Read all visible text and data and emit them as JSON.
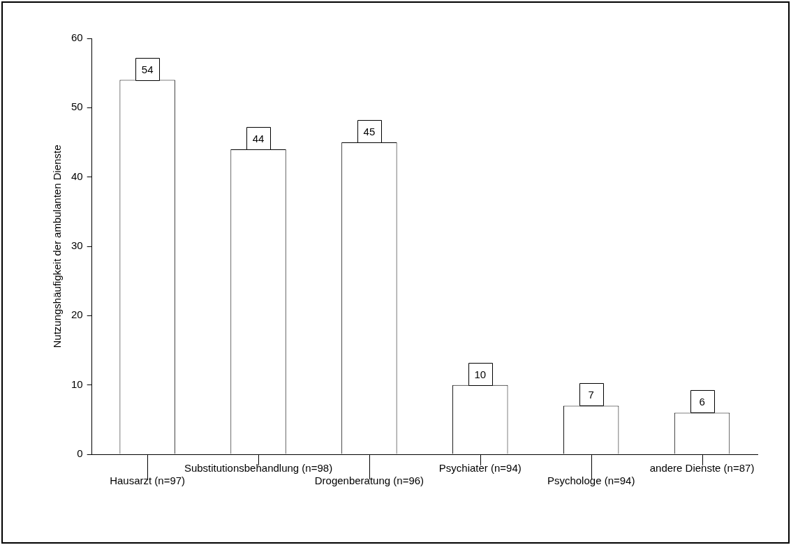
{
  "chart_data": {
    "type": "bar",
    "ylabel": "Nutzungshäufigkeit der ambulanten Dienste",
    "categories": [
      "Hausarzt (n=97)",
      "Substitutionsbehandlung (n=98)",
      "Drogenberatung (n=96)",
      "Psychiater (n=94)",
      "Psychologe (n=94)",
      "andere Dienste (n=87)"
    ],
    "values": [
      54,
      44,
      45,
      10,
      7,
      6
    ],
    "color": "#ffffff",
    "ylim": [
      0,
      60
    ],
    "yticks": [
      0,
      10,
      20,
      30,
      40,
      50,
      60
    ],
    "grid": false,
    "legend": false,
    "data_labels": true
  }
}
